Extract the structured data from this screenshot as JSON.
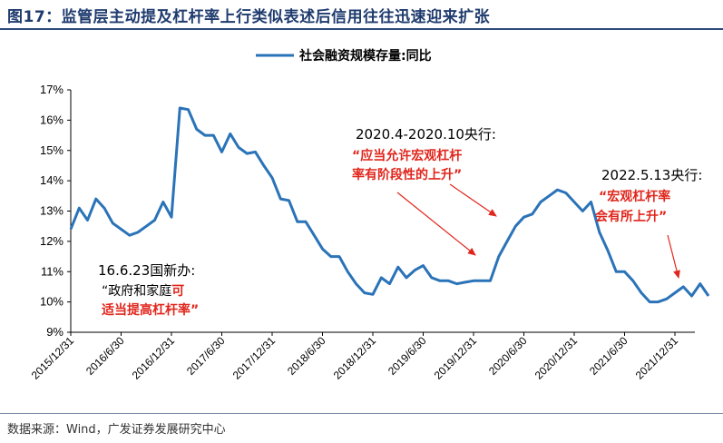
{
  "title": "图17：监管层主动提及杠杆率上行类似表述后信用往往迅速迎来扩张",
  "source": "数据来源：Wind，广发证券发展研究中心",
  "colors": {
    "line": "#2a73b8",
    "annotation_red": "#e0261c",
    "title": "#1f3b6e"
  },
  "chart_data": {
    "type": "line",
    "title": "",
    "legend": "社会融资规模存量:同比",
    "legend_position": "top-center",
    "ylim": [
      9,
      17
    ],
    "yticks": [
      9,
      10,
      11,
      12,
      13,
      14,
      15,
      16,
      17
    ],
    "ytick_labels": [
      "9%",
      "10%",
      "11%",
      "12%",
      "13%",
      "14%",
      "15%",
      "16%",
      "17%"
    ],
    "xtick_labels": [
      "2015/12/31",
      "2016/6/30",
      "2016/12/31",
      "2017/6/30",
      "2017/12/31",
      "2018/6/30",
      "2018/12/31",
      "2019/6/30",
      "2019/12/31",
      "2020/6/30",
      "2020/12/31",
      "2021/6/30",
      "2021/12/31"
    ],
    "grid": false,
    "series": [
      {
        "name": "社会融资规模存量:同比",
        "x": [
          "2015/12",
          "2016/1",
          "2016/2",
          "2016/3",
          "2016/4",
          "2016/5",
          "2016/6",
          "2016/7",
          "2016/8",
          "2016/9",
          "2016/10",
          "2016/11",
          "2016/12",
          "2017/1",
          "2017/2",
          "2017/3",
          "2017/4",
          "2017/5",
          "2017/6",
          "2017/7",
          "2017/8",
          "2017/9",
          "2017/10",
          "2017/11",
          "2017/12",
          "2018/1",
          "2018/2",
          "2018/3",
          "2018/4",
          "2018/5",
          "2018/6",
          "2018/7",
          "2018/8",
          "2018/9",
          "2018/10",
          "2018/11",
          "2018/12",
          "2019/1",
          "2019/2",
          "2019/3",
          "2019/4",
          "2019/5",
          "2019/6",
          "2019/7",
          "2019/8",
          "2019/9",
          "2019/10",
          "2019/11",
          "2019/12",
          "2020/1",
          "2020/2",
          "2020/3",
          "2020/4",
          "2020/5",
          "2020/6",
          "2020/7",
          "2020/8",
          "2020/9",
          "2020/10",
          "2020/11",
          "2020/12",
          "2021/1",
          "2021/2",
          "2021/3",
          "2021/4",
          "2021/5",
          "2021/6",
          "2021/7",
          "2021/8",
          "2021/9",
          "2021/10",
          "2021/11",
          "2021/12",
          "2022/1",
          "2022/2",
          "2022/3",
          "2022/4"
        ],
        "values": [
          12.4,
          13.1,
          12.7,
          13.4,
          13.1,
          12.6,
          12.4,
          12.2,
          12.3,
          12.5,
          12.7,
          13.3,
          12.8,
          16.4,
          16.35,
          15.7,
          15.5,
          15.5,
          14.95,
          15.55,
          15.1,
          14.9,
          14.95,
          14.5,
          14.1,
          13.4,
          13.35,
          12.65,
          12.65,
          12.2,
          11.75,
          11.5,
          11.5,
          11.0,
          10.6,
          10.3,
          10.25,
          10.8,
          10.6,
          11.15,
          10.8,
          11.05,
          11.2,
          10.8,
          10.7,
          10.7,
          10.6,
          10.65,
          10.7,
          10.7,
          10.7,
          11.5,
          12.0,
          12.5,
          12.8,
          12.9,
          13.3,
          13.5,
          13.7,
          13.6,
          13.3,
          13.0,
          13.3,
          12.3,
          11.7,
          11.0,
          11.0,
          10.7,
          10.3,
          10.0,
          10.0,
          10.1,
          10.3,
          10.5,
          10.2,
          10.6,
          10.2
        ]
      }
    ],
    "annotations": [
      {
        "id": "a2016",
        "lines": [
          "16.6.23国新办:",
          "“政府和家庭可",
          "适当提高杠杆率”"
        ],
        "date": "2016/6"
      },
      {
        "id": "a2020",
        "lines": [
          "2020.4-2020.10央行:",
          "“应当允许宏观杠杆",
          "率有阶段性的上升”"
        ],
        "date": "2020/4–2020/10"
      },
      {
        "id": "a2022",
        "lines": [
          "2022.5.13央行:",
          "“宏观杠杆率",
          "会有所上升”"
        ],
        "date": "2022/5"
      }
    ]
  }
}
